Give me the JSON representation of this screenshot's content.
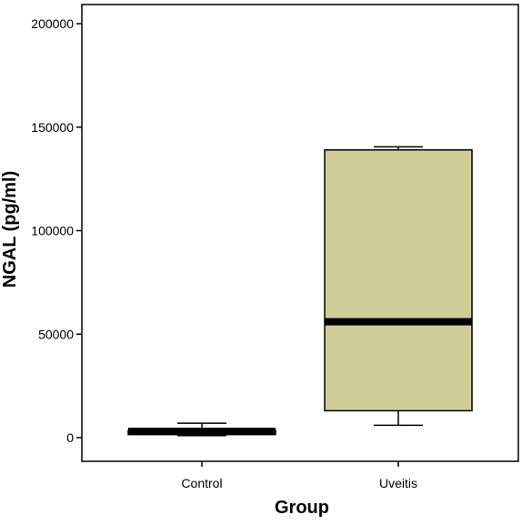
{
  "chart_data": {
    "type": "boxplot",
    "title": "",
    "xlabel": "Group",
    "ylabel": "NGAL (pg/ml)",
    "ylim": [
      0,
      200000
    ],
    "yticks": [
      0,
      50000,
      100000,
      150000,
      200000
    ],
    "grid": false,
    "categories": [
      "Control",
      "Uveitis"
    ],
    "boxes": [
      {
        "category": "Control",
        "whisker_low": 1000,
        "q1": 1500,
        "median": 3000,
        "q3": 3500,
        "whisker_high": 7000
      },
      {
        "category": "Uveitis",
        "whisker_low": 6000,
        "q1": 13000,
        "median": 56000,
        "q3": 139000,
        "whisker_high": 140500
      }
    ],
    "colors": {
      "box_fill": "#d0cd98",
      "stroke": "#000000"
    }
  }
}
